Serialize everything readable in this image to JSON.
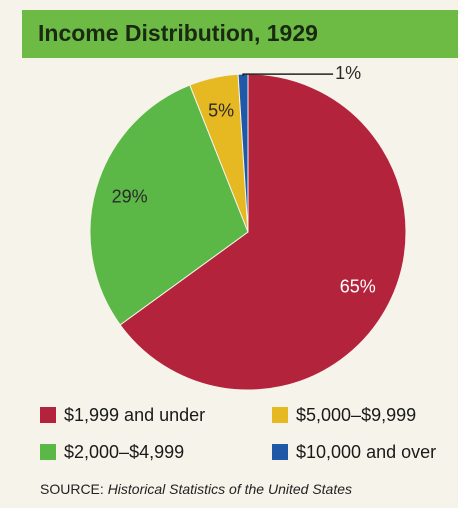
{
  "chart_data": {
    "type": "pie",
    "title": "Income Distribution, 1929",
    "categories": [
      "$1,999 and under",
      "$2,000–$4,999",
      "$5,000–$9,999",
      "$10,000 and over"
    ],
    "values": [
      65,
      29,
      5,
      1
    ],
    "value_labels": [
      "65%",
      "29%",
      "5%",
      "1%"
    ],
    "colors": [
      "#b3233c",
      "#5cb846",
      "#e6b821",
      "#1f58a6"
    ],
    "source_label": "SOURCE:",
    "source": "Historical Statistics of the United States"
  }
}
